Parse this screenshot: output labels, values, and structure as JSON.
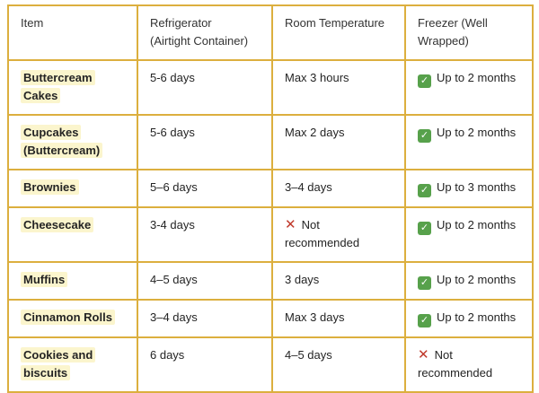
{
  "icons": {
    "check": "✓",
    "x": "✕"
  },
  "colors": {
    "border": "#dcaf3e",
    "highlight": "#fbf5cd",
    "check_green": "#57a14b",
    "x_red": "#c0392b",
    "text": "#242424"
  },
  "table": {
    "columns": [
      "Item",
      "Refrigerator\n(Airtight Container)",
      "Room Temperature",
      "Freezer (Well\nWrapped)"
    ],
    "rows": [
      {
        "item": "Buttercream Cakes",
        "refrigerator": {
          "text": "5-6 days"
        },
        "room": {
          "text": "Max 3 hours"
        },
        "freezer": {
          "icon": "check",
          "text": "Up to 2 months"
        }
      },
      {
        "item": "Cupcakes\n(Buttercream)",
        "refrigerator": {
          "text": "5-6 days"
        },
        "room": {
          "text": "Max 2 days"
        },
        "freezer": {
          "icon": "check",
          "text": "Up to 2 months"
        }
      },
      {
        "item": "Brownies",
        "refrigerator": {
          "text": "5–6 days"
        },
        "room": {
          "text": "3–4 days"
        },
        "freezer": {
          "icon": "check",
          "text": "Up to 3 months"
        }
      },
      {
        "item": "Cheesecake",
        "refrigerator": {
          "text": "3-4 days"
        },
        "room": {
          "icon": "x",
          "text": "Not\nrecommended"
        },
        "freezer": {
          "icon": "check",
          "text": "Up to 2 months"
        }
      },
      {
        "item": "Muffins",
        "refrigerator": {
          "text": "4–5 days"
        },
        "room": {
          "text": "3 days"
        },
        "freezer": {
          "icon": "check",
          "text": "Up to 2 months"
        }
      },
      {
        "item": "Cinnamon Rolls",
        "refrigerator": {
          "text": "3–4 days"
        },
        "room": {
          "text": "Max 3 days"
        },
        "freezer": {
          "icon": "check",
          "text": "Up to 2 months"
        }
      },
      {
        "item": "Cookies and\nbiscuits",
        "refrigerator": {
          "text": "6 days"
        },
        "room": {
          "text": "4–5 days"
        },
        "freezer": {
          "icon": "x",
          "text": "Not\nrecommended"
        }
      }
    ]
  },
  "chart_data": {
    "type": "table",
    "title": "",
    "columns": [
      "Item",
      "Refrigerator (Airtight Container)",
      "Room Temperature",
      "Freezer (Well Wrapped)"
    ],
    "rows": [
      [
        "Buttercream Cakes",
        "5-6 days",
        "Max 3 hours",
        "✅ Up to 2 months"
      ],
      [
        "Cupcakes (Buttercream)",
        "5-6 days",
        "Max 2 days",
        "✅ Up to 2 months"
      ],
      [
        "Brownies",
        "5–6 days",
        "3–4 days",
        "✅ Up to 3 months"
      ],
      [
        "Cheesecake",
        "3-4 days",
        "❌ Not recommended",
        "✅ Up to 2 months"
      ],
      [
        "Muffins",
        "4–5 days",
        "3 days",
        "✅ Up to 2 months"
      ],
      [
        "Cinnamon Rolls",
        "3–4 days",
        "Max 3 days",
        "✅ Up to 2 months"
      ],
      [
        "Cookies and biscuits",
        "6 days",
        "4–5 days",
        "❌ Not recommended"
      ]
    ]
  }
}
